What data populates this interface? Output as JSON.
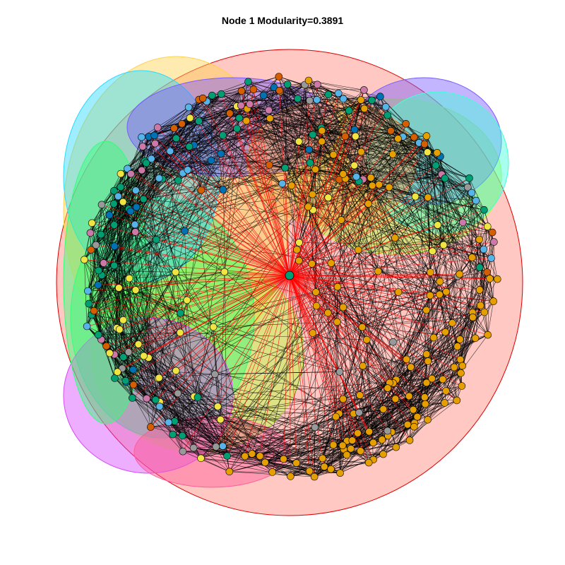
{
  "title": "Node 1 Modularity=0.3891",
  "colors": {
    "background": "#ffffff",
    "edge_normal": "#000000",
    "edge_highlight": "#ff0000",
    "node_stroke": "#000000",
    "node_palette": [
      "#E69F00",
      "#56B4E9",
      "#009E73",
      "#F0E442",
      "#0072B2",
      "#D55E00",
      "#CC79A7",
      "#999999"
    ],
    "community_hulls": [
      "#ff9a90",
      "#ffd24d",
      "#b6ff3a",
      "#33ff77",
      "#2bd9ff",
      "#7a5cff",
      "#d64bff",
      "#ff5c9c",
      "#ffa64d",
      "#40ffd6"
    ]
  },
  "network": {
    "highlighted_node_label": "1",
    "highlighted_node_color": "#009E73",
    "modularity": 0.3891,
    "node_count": 400,
    "community_count": 10
  }
}
